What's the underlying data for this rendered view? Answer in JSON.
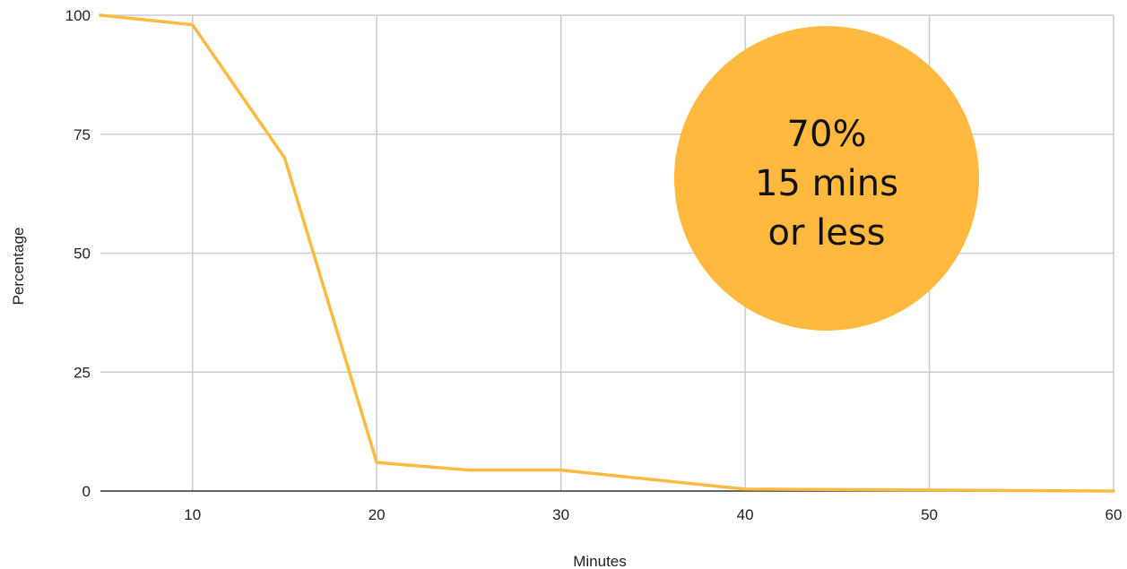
{
  "colors": {
    "series": "#fbba42",
    "callout": "#ffb93f",
    "grid": "#cccccc"
  },
  "chart_data": {
    "type": "line",
    "title": "",
    "xlabel": "Minutes",
    "ylabel": "Percentage",
    "xlim": [
      5,
      60
    ],
    "ylim": [
      0,
      100
    ],
    "x_ticks": [
      10,
      20,
      30,
      40,
      50,
      60
    ],
    "y_ticks": [
      0,
      25,
      50,
      75,
      100
    ],
    "grid": true,
    "legend": "none",
    "series": [
      {
        "x": [
          5,
          10,
          15,
          20,
          25,
          30,
          35,
          40,
          45,
          50,
          55,
          60
        ],
        "y": [
          100,
          98,
          70,
          6,
          4.4,
          4.4,
          2.4,
          0.4,
          0.3,
          0.2,
          0.1,
          0
        ]
      }
    ],
    "annotation": {
      "lines": [
        "70%",
        "15 mins",
        "or less"
      ]
    }
  }
}
